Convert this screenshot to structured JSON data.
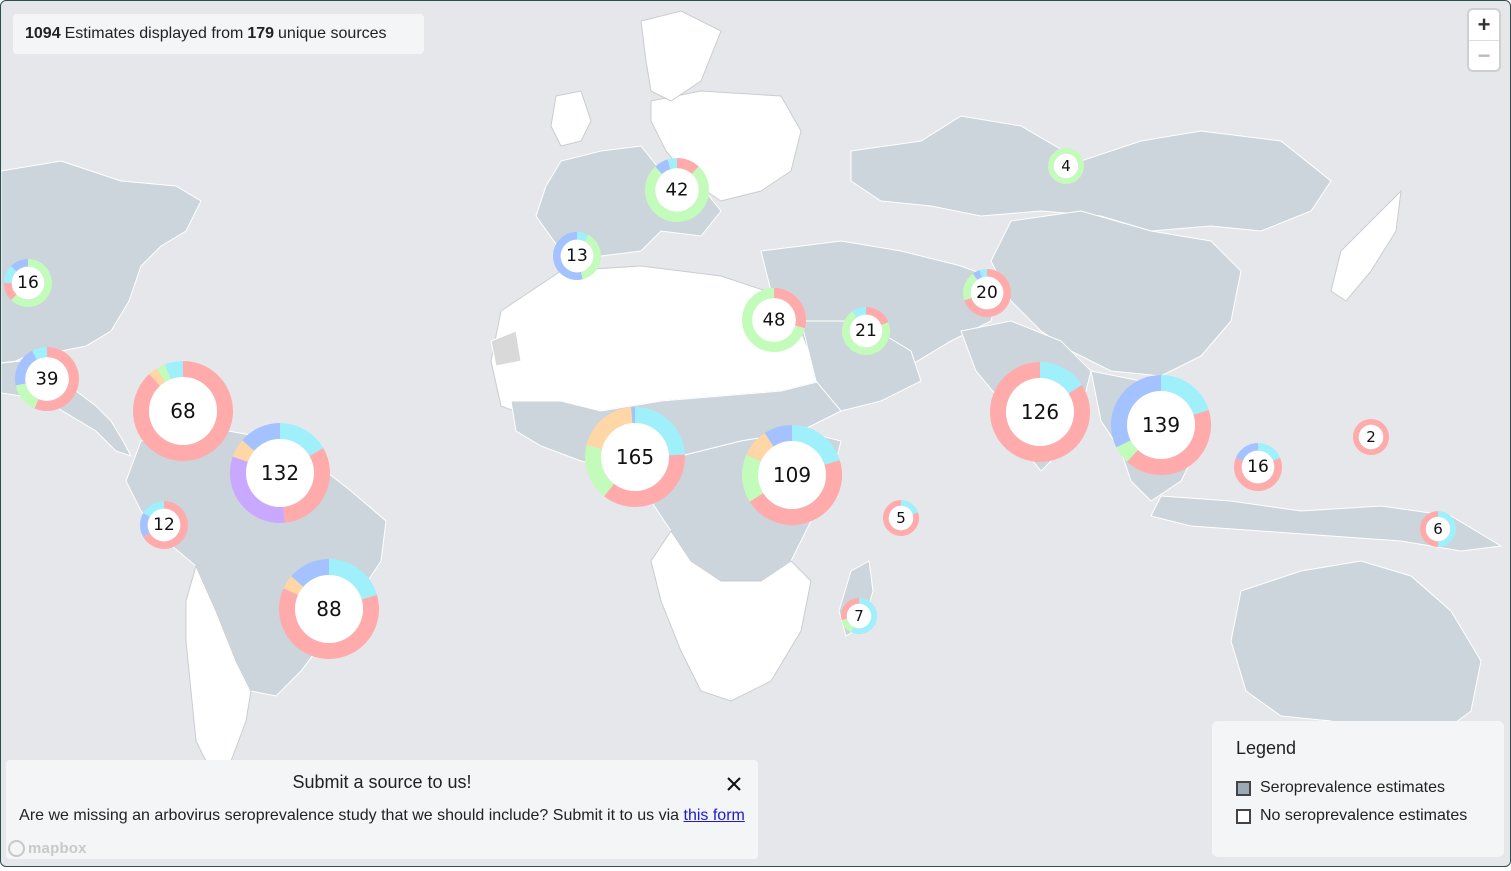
{
  "banner": {
    "estimates_count": "1094",
    "estimates_text": "Estimates displayed from",
    "sources_count": "179",
    "sources_text": "unique sources"
  },
  "zoom": {
    "in_label": "+",
    "out_label": "−"
  },
  "submit_panel": {
    "title": "Submit a source to us!",
    "text": "Are we missing an arbovirus seroprevalence study that we should include? Submit it to us via",
    "link_text": "this form"
  },
  "attribution": {
    "logo_text": "mapbox"
  },
  "legend": {
    "title": "Legend",
    "items": [
      {
        "label": "Seroprevalence estimates",
        "color": "#9aa9b4"
      },
      {
        "label": "No seroprevalence estimates",
        "color": "#ffffff"
      }
    ]
  },
  "colors": {
    "red": "#ffabab",
    "cyan": "#9ff0fa",
    "green": "#c3fbba",
    "blue": "#a4c2ff",
    "orange": "#ffd6a5",
    "purple": "#c9a9ff",
    "ocean": "#e6e7ea",
    "land_with_estimates": "#cbd5db",
    "land_without_estimates": "#ffffff"
  },
  "clusters": [
    {
      "count": "16",
      "segments": [
        {
          "c": "green",
          "v": 10
        },
        {
          "c": "red",
          "v": 2
        },
        {
          "c": "cyan",
          "v": 2
        },
        {
          "c": "blue",
          "v": 2
        }
      ]
    },
    {
      "count": "39",
      "segments": [
        {
          "c": "red",
          "v": 22
        },
        {
          "c": "green",
          "v": 6
        },
        {
          "c": "blue",
          "v": 8
        },
        {
          "c": "cyan",
          "v": 3
        }
      ]
    },
    {
      "count": "68",
      "segments": [
        {
          "c": "red",
          "v": 60
        },
        {
          "c": "orange",
          "v": 2
        },
        {
          "c": "green",
          "v": 2
        },
        {
          "c": "cyan",
          "v": 4
        }
      ]
    },
    {
      "count": "132",
      "segments": [
        {
          "c": "cyan",
          "v": 22
        },
        {
          "c": "red",
          "v": 42
        },
        {
          "c": "purple",
          "v": 42
        },
        {
          "c": "orange",
          "v": 8
        },
        {
          "c": "blue",
          "v": 18
        }
      ]
    },
    {
      "count": "12",
      "segments": [
        {
          "c": "red",
          "v": 8
        },
        {
          "c": "blue",
          "v": 2
        },
        {
          "c": "cyan",
          "v": 2
        }
      ]
    },
    {
      "count": "88",
      "segments": [
        {
          "c": "cyan",
          "v": 18
        },
        {
          "c": "red",
          "v": 54
        },
        {
          "c": "orange",
          "v": 4
        },
        {
          "c": "blue",
          "v": 12
        }
      ]
    },
    {
      "count": "13",
      "segments": [
        {
          "c": "cyan",
          "v": 1
        },
        {
          "c": "green",
          "v": 5
        },
        {
          "c": "blue",
          "v": 7
        }
      ]
    },
    {
      "count": "42",
      "segments": [
        {
          "c": "red",
          "v": 5
        },
        {
          "c": "green",
          "v": 32
        },
        {
          "c": "blue",
          "v": 3
        },
        {
          "c": "cyan",
          "v": 2
        }
      ]
    },
    {
      "count": "48",
      "segments": [
        {
          "c": "red",
          "v": 14
        },
        {
          "c": "green",
          "v": 34
        }
      ]
    },
    {
      "count": "21",
      "segments": [
        {
          "c": "red",
          "v": 4
        },
        {
          "c": "green",
          "v": 15
        },
        {
          "c": "cyan",
          "v": 2
        }
      ]
    },
    {
      "count": "4",
      "segments": [
        {
          "c": "green",
          "v": 4
        }
      ]
    },
    {
      "count": "20",
      "segments": [
        {
          "c": "red",
          "v": 14
        },
        {
          "c": "green",
          "v": 4
        },
        {
          "c": "blue",
          "v": 1
        },
        {
          "c": "cyan",
          "v": 1
        }
      ]
    },
    {
      "count": "165",
      "segments": [
        {
          "c": "cyan",
          "v": 40
        },
        {
          "c": "red",
          "v": 60
        },
        {
          "c": "green",
          "v": 30
        },
        {
          "c": "orange",
          "v": 33
        },
        {
          "c": "blue",
          "v": 2
        }
      ]
    },
    {
      "count": "109",
      "segments": [
        {
          "c": "cyan",
          "v": 22
        },
        {
          "c": "red",
          "v": 50
        },
        {
          "c": "green",
          "v": 17
        },
        {
          "c": "orange",
          "v": 10
        },
        {
          "c": "blue",
          "v": 10
        }
      ]
    },
    {
      "count": "5",
      "segments": [
        {
          "c": "cyan",
          "v": 1
        },
        {
          "c": "red",
          "v": 4
        }
      ]
    },
    {
      "count": "7",
      "segments": [
        {
          "c": "cyan",
          "v": 4
        },
        {
          "c": "green",
          "v": 1
        },
        {
          "c": "red",
          "v": 2
        }
      ]
    },
    {
      "count": "126",
      "segments": [
        {
          "c": "cyan",
          "v": 20
        },
        {
          "c": "red",
          "v": 106
        }
      ]
    },
    {
      "count": "139",
      "segments": [
        {
          "c": "cyan",
          "v": 28
        },
        {
          "c": "red",
          "v": 58
        },
        {
          "c": "green",
          "v": 8
        },
        {
          "c": "blue",
          "v": 45
        }
      ]
    },
    {
      "count": "16",
      "segments": [
        {
          "c": "cyan",
          "v": 3
        },
        {
          "c": "red",
          "v": 10
        },
        {
          "c": "blue",
          "v": 3
        }
      ]
    },
    {
      "count": "2",
      "segments": [
        {
          "c": "red",
          "v": 2
        }
      ]
    },
    {
      "count": "6",
      "segments": [
        {
          "c": "cyan",
          "v": 3
        },
        {
          "c": "red",
          "v": 3
        }
      ]
    }
  ]
}
